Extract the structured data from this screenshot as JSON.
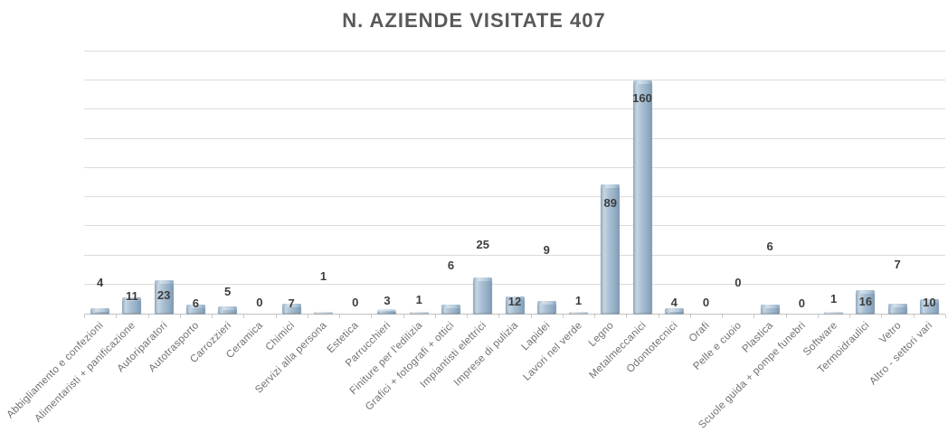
{
  "title": "N. AZIENDE VISITATE 407",
  "chart_data": {
    "type": "bar",
    "title": "N. AZIENDE VISITATE 407",
    "total_visited": 407,
    "categories": [
      "Abbigliamento e confezioni",
      "Alimentaristi + panificazione",
      "Autoriparatori",
      "Autotrasporto",
      "Carrozzieri",
      "Ceramica",
      "Chimici",
      "Servizi alla persona",
      "Estetica",
      "Parrucchieri",
      "Finiture per l'edilizia",
      "Grafici + fotografi + ottici",
      "Impiantisti elettrici",
      "Imprese di pulizia",
      "Lapidei",
      "Lavori nel verde",
      "Legno",
      "Metalmeccanici",
      "Odontotecnici",
      "Orafi",
      "Pelle e cuoio",
      "Plastica",
      "Scuole guida + pompe funebri",
      "Software",
      "Termoidraulici",
      "Vetro",
      "Altro - settori vari"
    ],
    "values": [
      4,
      11,
      23,
      6,
      5,
      0,
      7,
      1,
      0,
      3,
      1,
      6,
      25,
      12,
      9,
      1,
      89,
      160,
      4,
      0,
      0,
      6,
      0,
      1,
      16,
      7,
      10
    ],
    "xlabel": "",
    "ylabel": "",
    "ylim": [
      0,
      180
    ],
    "gridline_step": 20,
    "grid": true,
    "legend": false,
    "y_tick_labels_visible": false,
    "data_labels_visible": true,
    "colors": {
      "bar_mid": "#9db6cd",
      "bar_highlight": "#c6d6e3",
      "bar_shadow": "#7e99b3",
      "gridline": "#dcdcdc",
      "baseline": "#c3c3c3",
      "title_text": "#595959",
      "value_label_text": "#3d3d3d",
      "axis_label_text": "#707070",
      "background": "#ffffff"
    }
  }
}
